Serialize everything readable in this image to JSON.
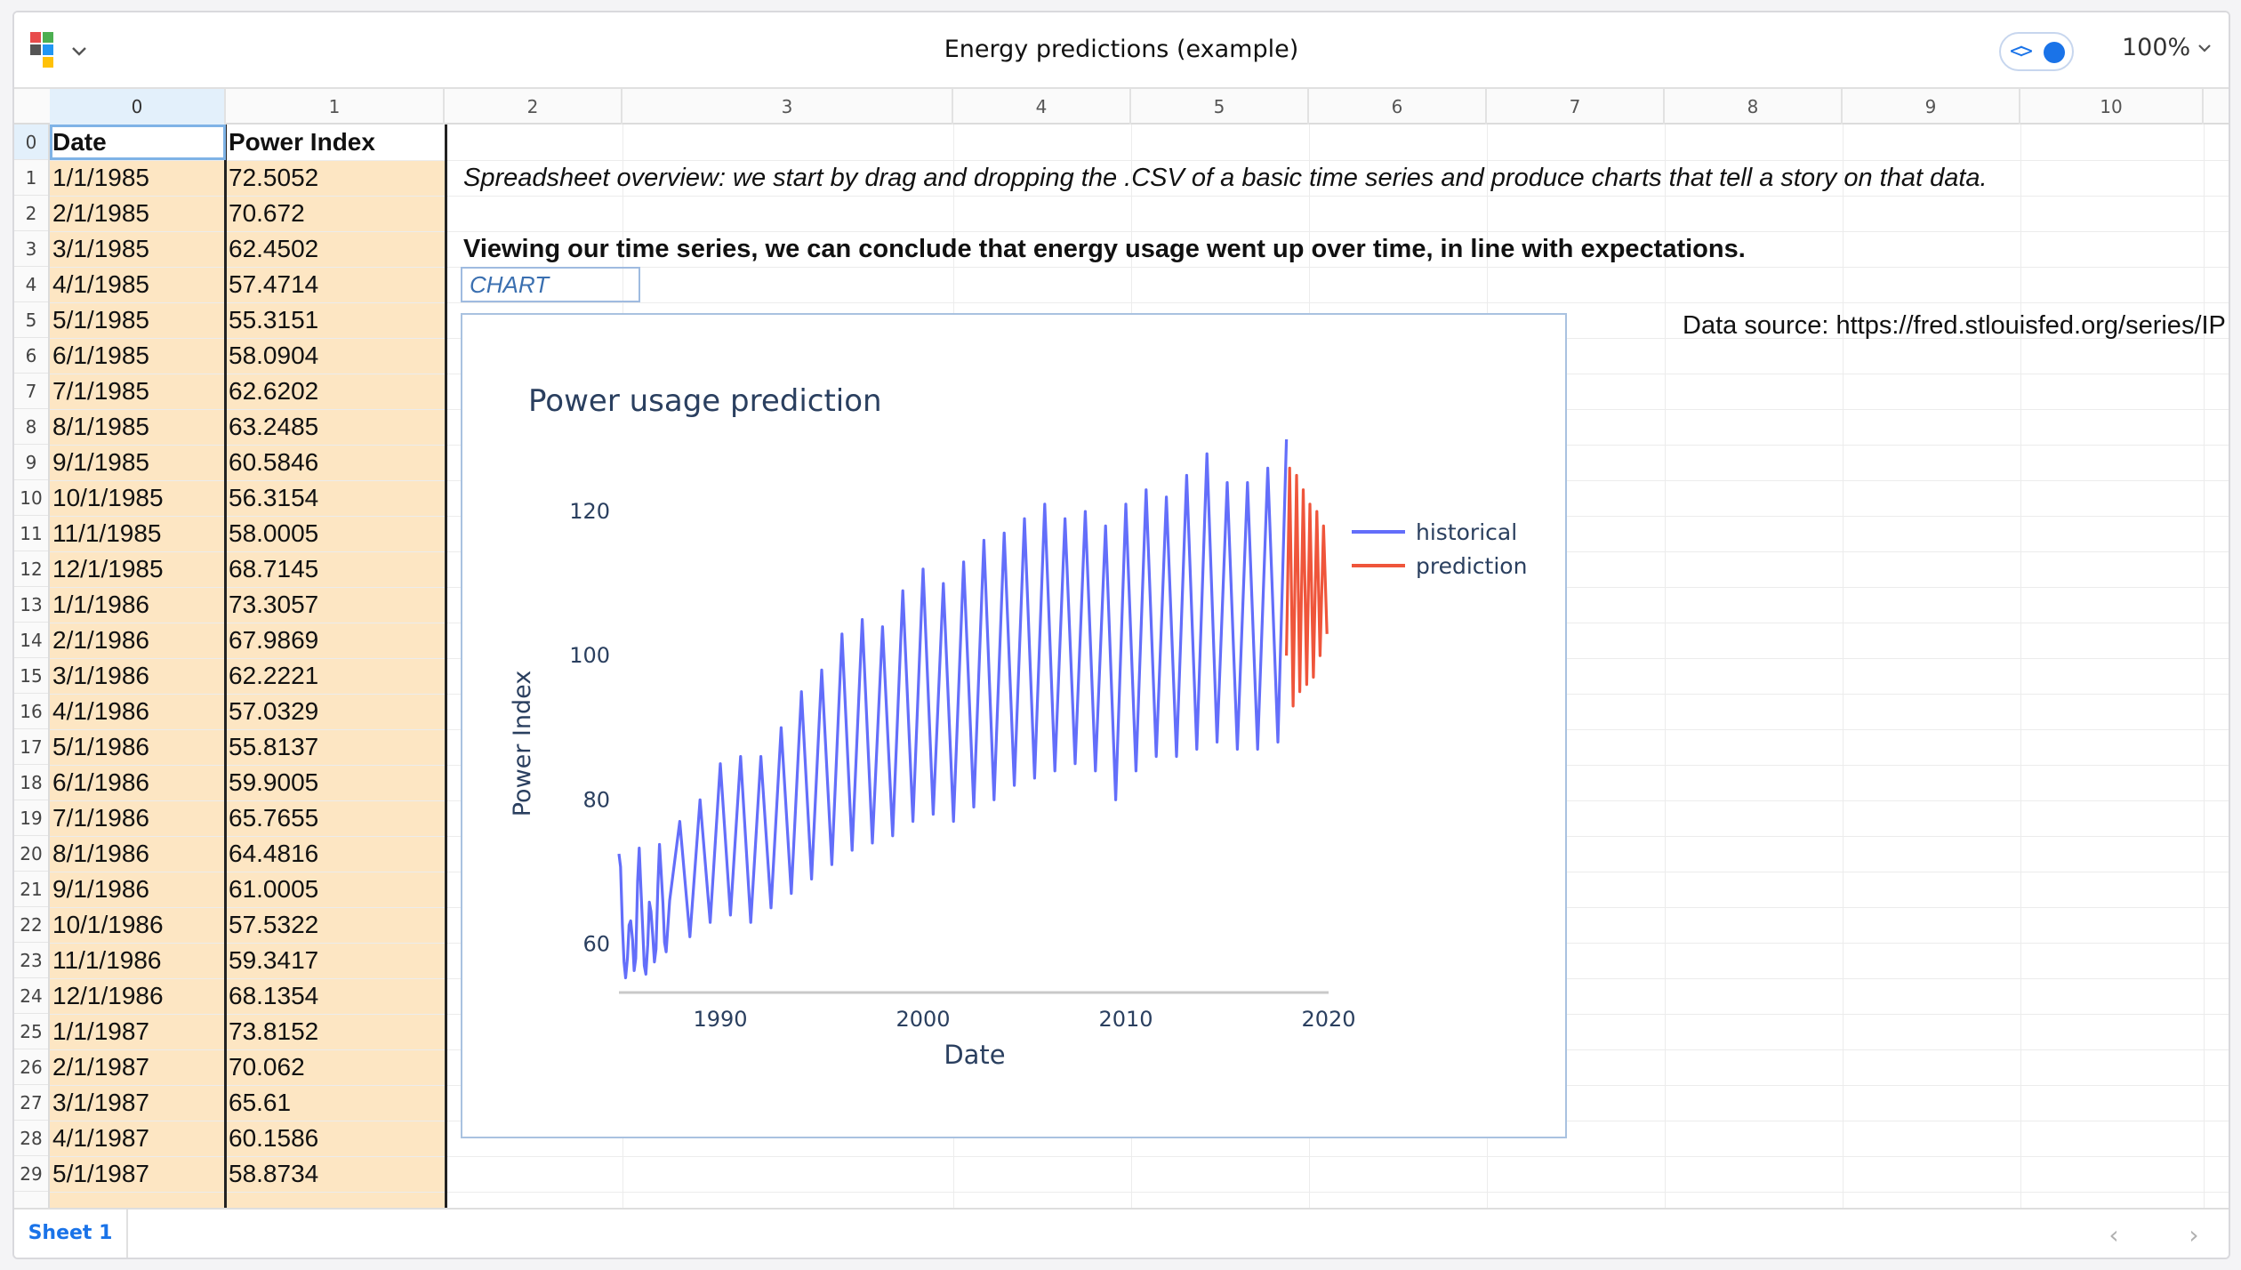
{
  "window": {
    "title": "Energy predictions (example)",
    "zoom": "100%",
    "code_toggle_glyph": "<>"
  },
  "grid": {
    "column_headers": [
      "0",
      "1",
      "2",
      "3",
      "4",
      "5",
      "6",
      "7",
      "8",
      "9",
      "10"
    ],
    "row_headers": [
      "0",
      "1",
      "2",
      "3",
      "4",
      "5",
      "6",
      "7",
      "8",
      "9",
      "10",
      "11",
      "12",
      "13",
      "14",
      "15",
      "16",
      "17",
      "18",
      "19",
      "20",
      "21",
      "22",
      "23",
      "24",
      "25",
      "26",
      "27",
      "28",
      "29"
    ],
    "date_header": "Date",
    "value_header": "Power Index",
    "rows": [
      {
        "date": "1/1/1985",
        "value": "72.5052"
      },
      {
        "date": "2/1/1985",
        "value": "70.672"
      },
      {
        "date": "3/1/1985",
        "value": "62.4502"
      },
      {
        "date": "4/1/1985",
        "value": "57.4714"
      },
      {
        "date": "5/1/1985",
        "value": "55.3151"
      },
      {
        "date": "6/1/1985",
        "value": "58.0904"
      },
      {
        "date": "7/1/1985",
        "value": "62.6202"
      },
      {
        "date": "8/1/1985",
        "value": "63.2485"
      },
      {
        "date": "9/1/1985",
        "value": "60.5846"
      },
      {
        "date": "10/1/1985",
        "value": "56.3154"
      },
      {
        "date": "11/1/1985",
        "value": "58.0005"
      },
      {
        "date": "12/1/1985",
        "value": "68.7145"
      },
      {
        "date": "1/1/1986",
        "value": "73.3057"
      },
      {
        "date": "2/1/1986",
        "value": "67.9869"
      },
      {
        "date": "3/1/1986",
        "value": "62.2221"
      },
      {
        "date": "4/1/1986",
        "value": "57.0329"
      },
      {
        "date": "5/1/1986",
        "value": "55.8137"
      },
      {
        "date": "6/1/1986",
        "value": "59.9005"
      },
      {
        "date": "7/1/1986",
        "value": "65.7655"
      },
      {
        "date": "8/1/1986",
        "value": "64.4816"
      },
      {
        "date": "9/1/1986",
        "value": "61.0005"
      },
      {
        "date": "10/1/1986",
        "value": "57.5322"
      },
      {
        "date": "11/1/1986",
        "value": "59.3417"
      },
      {
        "date": "12/1/1986",
        "value": "68.1354"
      },
      {
        "date": "1/1/1987",
        "value": "73.8152"
      },
      {
        "date": "2/1/1987",
        "value": "70.062"
      },
      {
        "date": "3/1/1987",
        "value": "65.61"
      },
      {
        "date": "4/1/1987",
        "value": "60.1586"
      },
      {
        "date": "5/1/1987",
        "value": "58.8734"
      }
    ],
    "overview_note": "Spreadsheet overview: we start by drag and dropping the .CSV of a basic time series and produce charts that tell a story on that data.",
    "conclusion_note": "Viewing our time series, we can conclude that energy usage went up over time, in line with expectations.",
    "chart_cell_label": "CHART",
    "data_source": "Data source: https://fred.stlouisfed.org/series/IP"
  },
  "sheets": {
    "active_tab": "Sheet 1",
    "prev_icon": "chevron-left-icon",
    "next_icon": "chevron-right-icon"
  },
  "colors": {
    "historical": "#636efa",
    "prediction": "#ef553b",
    "data_column_fill": "#fde6c3",
    "accent": "#1a73e8"
  },
  "chart_data": {
    "type": "line",
    "title": "Power usage prediction",
    "xlabel": "Date",
    "ylabel": "Power Index",
    "xlim": [
      1985.0,
      2020.0
    ],
    "ylim": [
      54,
      130
    ],
    "x_ticks": [
      1990,
      2000,
      2010,
      2020
    ],
    "y_ticks": [
      60,
      80,
      100,
      120
    ],
    "legend_position": "top-right",
    "series": [
      {
        "name": "historical",
        "x": [
          1985.0,
          1985.08,
          1985.17,
          1985.25,
          1985.33,
          1985.42,
          1985.5,
          1985.58,
          1985.67,
          1985.75,
          1985.83,
          1985.92,
          1986.0,
          1986.08,
          1986.17,
          1986.25,
          1986.33,
          1986.42,
          1986.5,
          1986.58,
          1986.67,
          1986.75,
          1986.83,
          1986.92,
          1987.0,
          1987.08,
          1987.17,
          1987.25,
          1987.33,
          1987.5,
          1988.0,
          1988.5,
          1989.0,
          1989.5,
          1990.0,
          1990.5,
          1991.0,
          1991.5,
          1992.0,
          1992.5,
          1993.0,
          1993.5,
          1994.0,
          1994.5,
          1995.0,
          1995.5,
          1996.0,
          1996.5,
          1997.0,
          1997.5,
          1998.0,
          1998.5,
          1999.0,
          1999.5,
          2000.0,
          2000.5,
          2001.0,
          2001.5,
          2002.0,
          2002.5,
          2003.0,
          2003.5,
          2004.0,
          2004.5,
          2005.0,
          2005.5,
          2006.0,
          2006.5,
          2007.0,
          2007.5,
          2008.0,
          2008.5,
          2009.0,
          2009.5,
          2010.0,
          2010.5,
          2011.0,
          2011.5,
          2012.0,
          2012.5,
          2013.0,
          2013.5,
          2014.0,
          2014.5,
          2015.0,
          2015.5,
          2016.0,
          2016.5,
          2017.0,
          2017.5,
          2017.92
        ],
        "y": [
          72.5,
          70.7,
          62.5,
          57.5,
          55.3,
          58.1,
          62.6,
          63.2,
          60.6,
          56.3,
          58.0,
          68.7,
          73.3,
          68.0,
          62.2,
          57.0,
          55.8,
          59.9,
          65.8,
          64.5,
          61.0,
          57.5,
          59.3,
          68.1,
          73.8,
          70.1,
          65.6,
          60.2,
          58.9,
          66.0,
          77.0,
          61.0,
          80.0,
          63.0,
          85.0,
          64.0,
          86.0,
          63.0,
          86.0,
          65.0,
          90.0,
          67.0,
          95.0,
          69.0,
          98.0,
          71.0,
          103.0,
          73.0,
          105.0,
          74.0,
          104.0,
          75.0,
          109.0,
          77.0,
          112.0,
          78.0,
          110.0,
          77.0,
          113.0,
          79.0,
          116.0,
          80.0,
          117.0,
          82.0,
          119.0,
          83.0,
          121.0,
          84.0,
          119.0,
          85.0,
          120.0,
          84.0,
          118.0,
          80.0,
          121.0,
          84.0,
          123.0,
          86.0,
          122.0,
          86.0,
          125.0,
          87.0,
          128.0,
          88.0,
          124.0,
          87.0,
          124.0,
          87.0,
          126.0,
          88.0,
          130.0
        ]
      },
      {
        "name": "prediction",
        "x": [
          2017.92,
          2018.08,
          2018.25,
          2018.42,
          2018.58,
          2018.75,
          2018.92,
          2019.08,
          2019.25,
          2019.42,
          2019.58,
          2019.75,
          2019.92
        ],
        "y": [
          100.0,
          126.0,
          93.0,
          125.0,
          95.0,
          123.0,
          96.0,
          121.0,
          97.0,
          120.0,
          100.0,
          118.0,
          103.0
        ]
      }
    ]
  }
}
